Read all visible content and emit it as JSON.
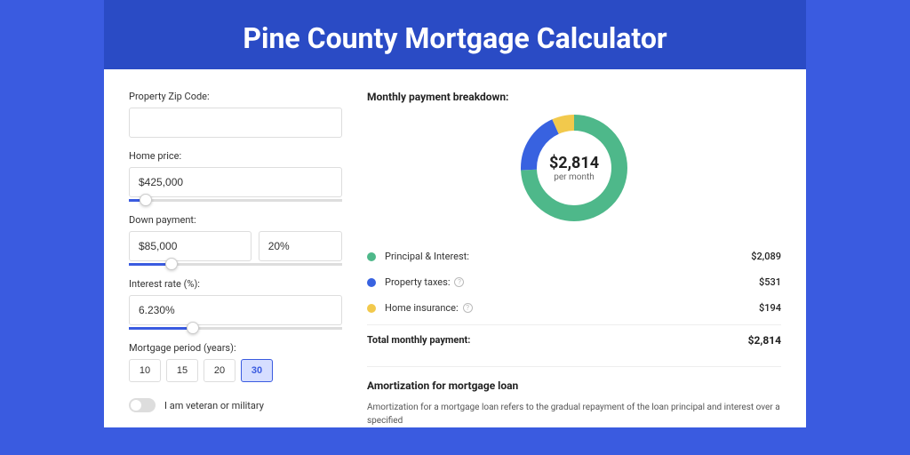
{
  "header": {
    "title": "Pine County Mortgage Calculator"
  },
  "form": {
    "zip": {
      "label": "Property Zip Code:",
      "value": ""
    },
    "home_price": {
      "label": "Home price:",
      "value": "$425,000",
      "slider_pct": 8
    },
    "down_payment": {
      "label": "Down payment:",
      "amount": "$85,000",
      "percent": "20%",
      "slider_pct": 20
    },
    "interest": {
      "label": "Interest rate (%):",
      "value": "6.230%",
      "slider_pct": 30
    },
    "period": {
      "label": "Mortgage period (years):",
      "options": [
        "10",
        "15",
        "20",
        "30"
      ],
      "selected": "30"
    },
    "veteran": {
      "label": "I am veteran or military",
      "on": false
    }
  },
  "breakdown": {
    "title": "Monthly payment breakdown:",
    "center_amount": "$2,814",
    "center_sub": "per month",
    "donut": {
      "slices": [
        {
          "value": 74.2,
          "color": "#4eb88a"
        },
        {
          "value": 18.9,
          "color": "#3862e0"
        },
        {
          "value": 6.9,
          "color": "#f2c94c"
        }
      ],
      "thickness": 18
    },
    "items": [
      {
        "label": "Principal & Interest:",
        "value": "$2,089",
        "color": "#4eb88a",
        "info": false
      },
      {
        "label": "Property taxes:",
        "value": "$531",
        "color": "#3862e0",
        "info": true
      },
      {
        "label": "Home insurance:",
        "value": "$194",
        "color": "#f2c94c",
        "info": true
      }
    ],
    "total_label": "Total monthly payment:",
    "total_value": "$2,814"
  },
  "amort": {
    "title": "Amortization for mortgage loan",
    "text": "Amortization for a mortgage loan refers to the gradual repayment of the loan principal and interest over a specified"
  },
  "colors": {
    "page_bg": "#3a5be0",
    "band_bg": "#2a4bc5",
    "card_bg": "#ffffff"
  }
}
